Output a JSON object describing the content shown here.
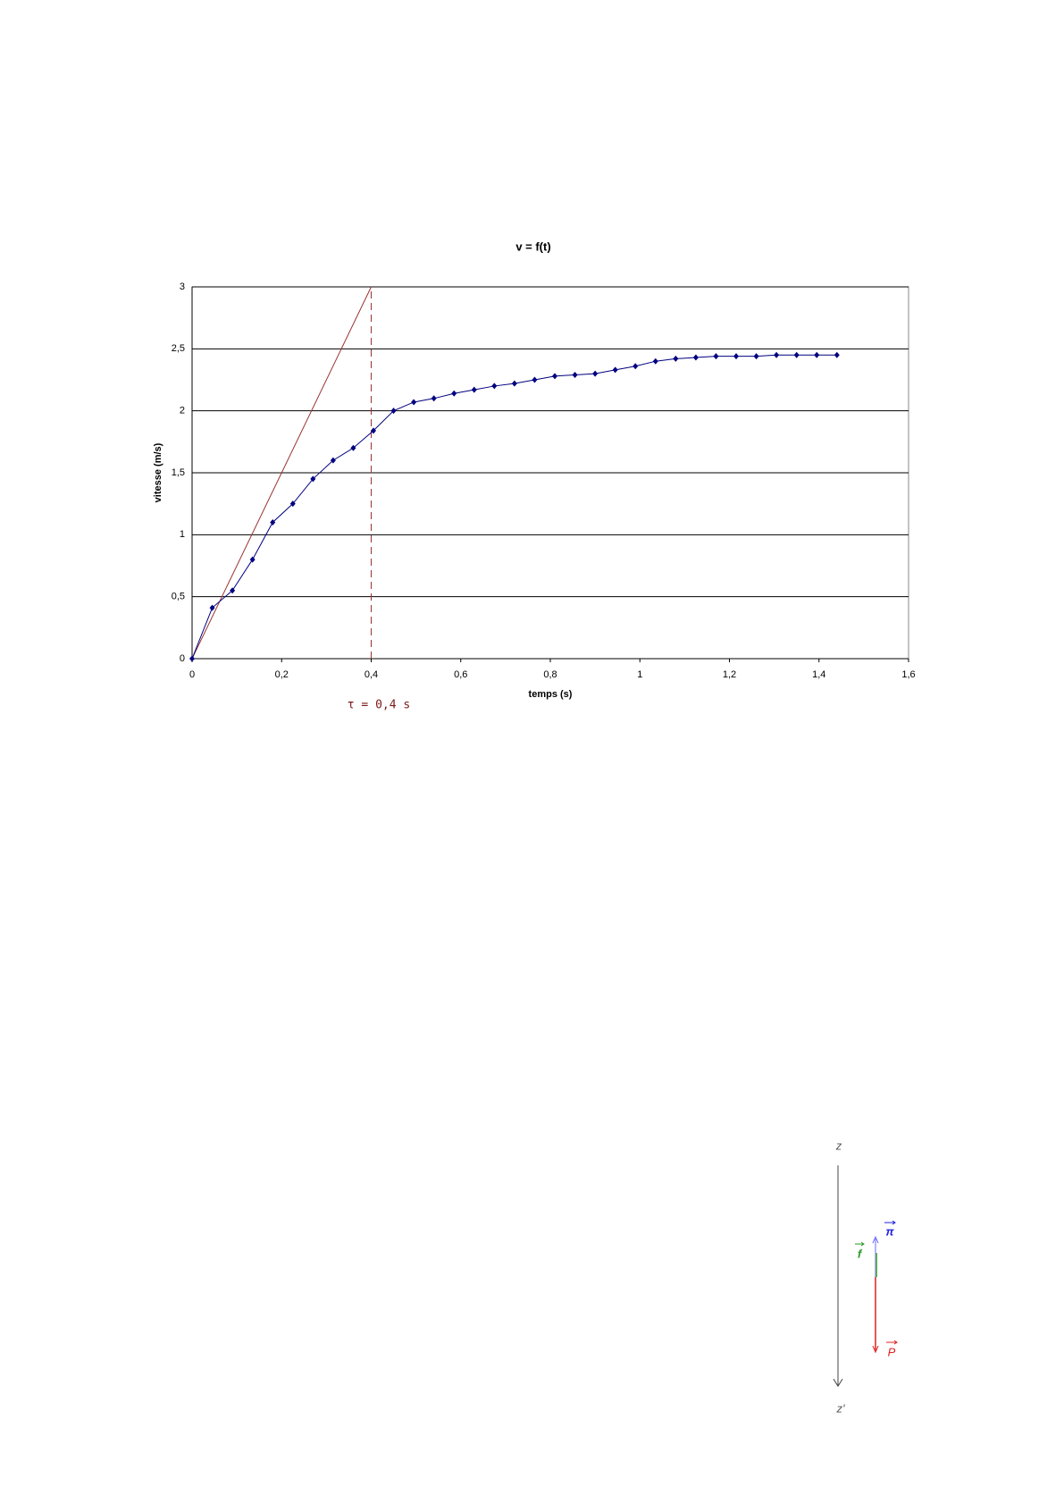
{
  "chart_data": {
    "type": "line",
    "title": "v = f(t)",
    "x_label": "temps (s)",
    "y_label": "vitesse (m/s)",
    "x": [
      0,
      0.045,
      0.09,
      0.135,
      0.18,
      0.225,
      0.27,
      0.315,
      0.36,
      0.405,
      0.45,
      0.495,
      0.54,
      0.585,
      0.63,
      0.675,
      0.72,
      0.765,
      0.81,
      0.855,
      0.9,
      0.945,
      0.99,
      1.035,
      1.08,
      1.125,
      1.17,
      1.215,
      1.26,
      1.305,
      1.35,
      1.395,
      1.44
    ],
    "series": [
      {
        "color": "#000080",
        "values": [
          0,
          0.41,
          0.55,
          0.8,
          1.1,
          1.25,
          1.45,
          1.6,
          1.7,
          1.84,
          2.0,
          2.07,
          2.1,
          2.14,
          2.17,
          2.2,
          2.22,
          2.25,
          2.28,
          2.29,
          2.3,
          2.33,
          2.36,
          2.4,
          2.42,
          2.43,
          2.44,
          2.44,
          2.44,
          2.45,
          2.45,
          2.45,
          2.45
        ]
      }
    ],
    "tangent": {
      "color": "#993333",
      "x": [
        0,
        0.4
      ],
      "values": [
        0,
        3
      ]
    },
    "tau_x": 0.4,
    "tau_label": "τ = 0,4 s",
    "xlim": [
      0,
      1.6
    ],
    "ylim": [
      0,
      3
    ],
    "grid": true,
    "xticks": [
      0,
      {
        "value": 0.2,
        "label": "0,2"
      },
      {
        "value": 0.4,
        "label": "0,4"
      },
      {
        "value": 0.6,
        "label": "0,6"
      },
      {
        "value": 0.8,
        "label": "0,8"
      },
      1,
      {
        "value": 1.2,
        "label": "1,2"
      },
      {
        "value": 1.4,
        "label": "1,4"
      },
      {
        "value": 1.6,
        "label": "1,6"
      }
    ],
    "yticks": [
      0,
      {
        "value": 0.5,
        "label": "0,5"
      },
      1,
      {
        "value": 1.5,
        "label": "1,5"
      },
      2,
      {
        "value": 2.5,
        "label": "2,5"
      },
      3
    ]
  },
  "diagram": {
    "axis_top": "z",
    "axis_bottom": "z'",
    "forces": [
      "π",
      "f",
      "P"
    ]
  }
}
